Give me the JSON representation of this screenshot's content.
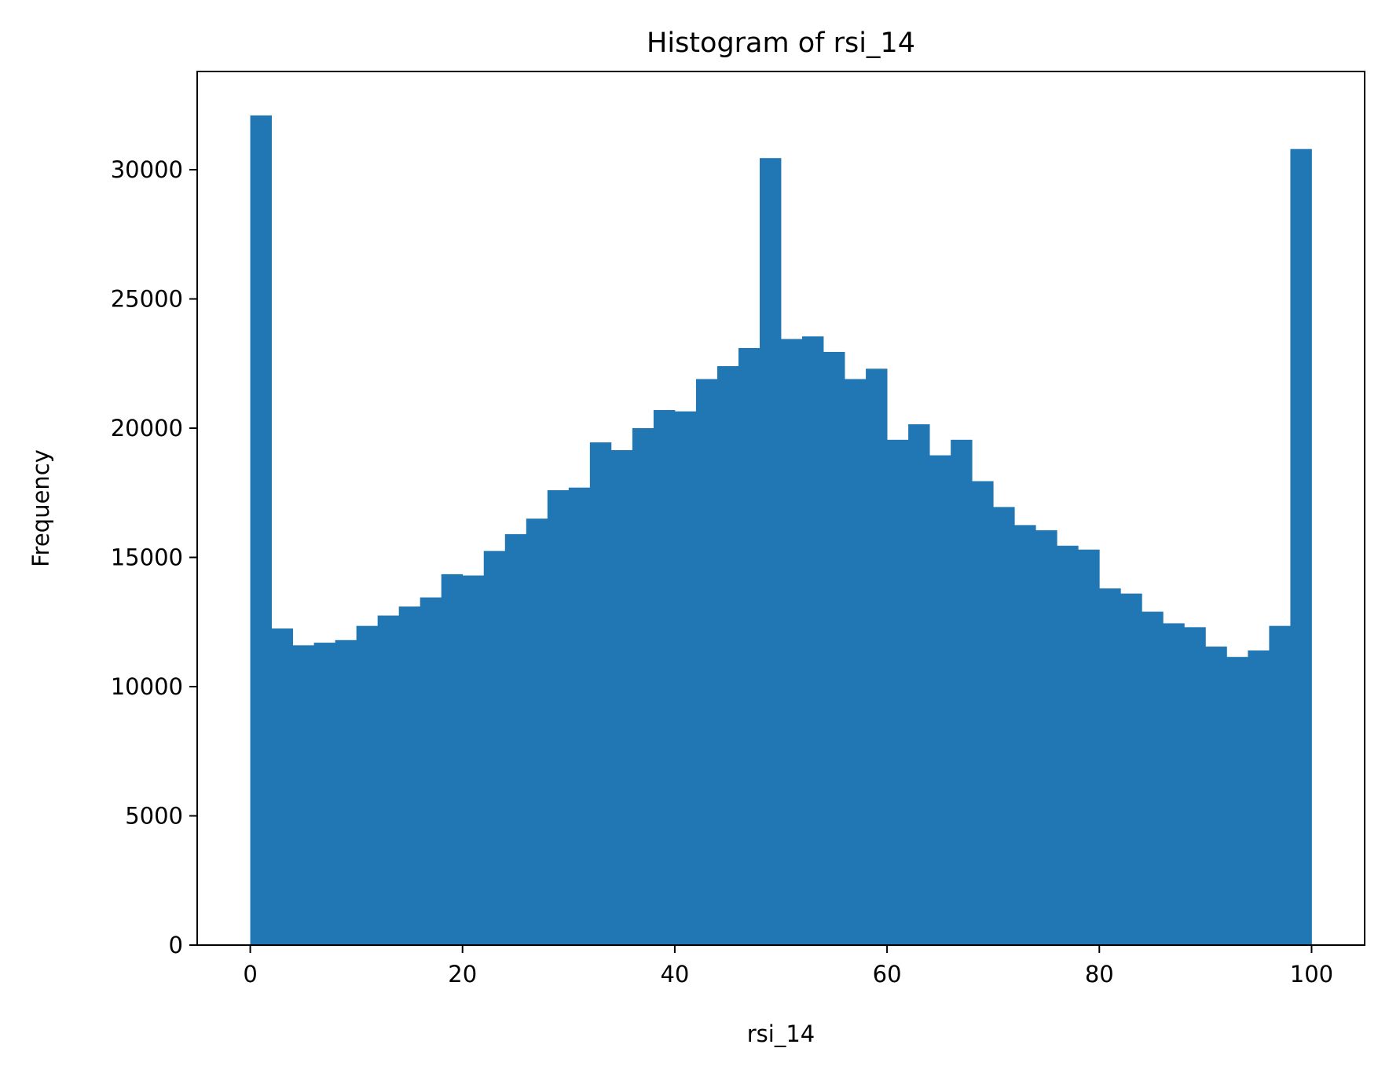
{
  "chart_data": {
    "type": "bar",
    "title": "Histogram of rsi_14",
    "xlabel": "rsi_14",
    "ylabel": "Frequency",
    "xlim": [
      -5,
      105
    ],
    "ylim": [
      0,
      33800
    ],
    "bin_start": 0,
    "bin_width": 2,
    "values": [
      32100,
      12250,
      11600,
      11700,
      11800,
      12350,
      12750,
      13100,
      13450,
      14350,
      14300,
      15250,
      15900,
      16500,
      17600,
      17700,
      19450,
      19150,
      20000,
      20700,
      20650,
      21900,
      22400,
      23100,
      30450,
      23450,
      23550,
      22950,
      21900,
      22300,
      19550,
      20150,
      18950,
      19550,
      17950,
      16950,
      16250,
      16050,
      15450,
      15300,
      13800,
      13600,
      12900,
      12450,
      12300,
      11550,
      11150,
      11400,
      12350,
      30800
    ],
    "x_ticks": [
      "0",
      "20",
      "40",
      "60",
      "80",
      "100"
    ],
    "y_ticks": [
      "0",
      "5000",
      "10000",
      "15000",
      "20000",
      "25000",
      "30000"
    ],
    "bar_color": "#2077b4",
    "grid": false,
    "legend": "none"
  }
}
